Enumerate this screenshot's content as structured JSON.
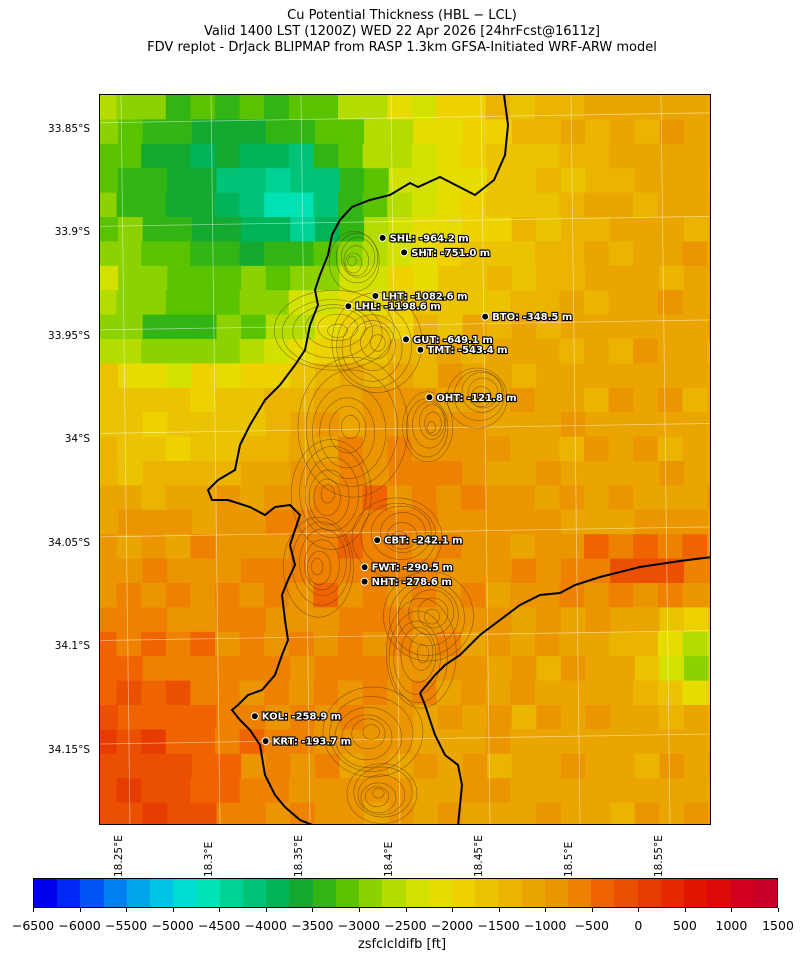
{
  "title_lines": [
    "Cu Potential Thickness (HBL − LCL)",
    "Valid 1400 LST (1200Z) WED 22 Apr 2026 [24hrFcst@1611z]",
    "FDV replot - DrJack BLIPMAP from RASP 1.3km GFSA-Initiated WRF-ARW model"
  ],
  "lat_ticks": [
    {
      "label": "33.85°S",
      "lat": -33.85
    },
    {
      "label": "33.9°S",
      "lat": -33.9
    },
    {
      "label": "33.95°S",
      "lat": -33.95
    },
    {
      "label": "34°S",
      "lat": -34.0
    },
    {
      "label": "34.05°S",
      "lat": -34.05
    },
    {
      "label": "34.1°S",
      "lat": -34.1
    },
    {
      "label": "34.15°S",
      "lat": -34.15
    }
  ],
  "lon_ticks": [
    {
      "label": "18.25°E",
      "lon": 18.25
    },
    {
      "label": "18.3°E",
      "lon": 18.3
    },
    {
      "label": "18.35°E",
      "lon": 18.35
    },
    {
      "label": "18.4°E",
      "lon": 18.4
    },
    {
      "label": "18.45°E",
      "lon": 18.45
    },
    {
      "label": "18.5°E",
      "lon": 18.5
    },
    {
      "label": "18.55°E",
      "lon": 18.55
    }
  ],
  "stations": [
    {
      "code": "SHL",
      "label": "SHL: -964.2 m",
      "lat": -33.908,
      "lon": 18.392
    },
    {
      "code": "SHT",
      "label": "SHT: -751.0 m",
      "lat": -33.915,
      "lon": 18.404
    },
    {
      "code": "LHT",
      "label": "LHT: -1082.6 m",
      "lat": -33.936,
      "lon": 18.388
    },
    {
      "code": "LHL",
      "label": "LHL: -1198.6 m",
      "lat": -33.941,
      "lon": 18.373
    },
    {
      "code": "BTO",
      "label": "BTO: -348.5 m",
      "lat": -33.946,
      "lon": 18.449
    },
    {
      "code": "GUT",
      "label": "GUT: -649.1 m",
      "lat": -33.957,
      "lon": 18.405
    },
    {
      "code": "TMT",
      "label": "TMT: -543.4 m",
      "lat": -33.962,
      "lon": 18.413
    },
    {
      "code": "OHT",
      "label": "OHT: -121.8 m",
      "lat": -33.985,
      "lon": 18.418
    },
    {
      "code": "CBT",
      "label": "CBT: -242.1 m",
      "lat": -34.054,
      "lon": 18.389
    },
    {
      "code": "FWT",
      "label": "FWT: -290.5 m",
      "lat": -34.067,
      "lon": 18.382
    },
    {
      "code": "NHT",
      "label": "NHT: -278.6 m",
      "lat": -34.074,
      "lon": 18.382
    },
    {
      "code": "KOL",
      "label": "KOL: -258.9 m",
      "lat": -34.139,
      "lon": 18.321
    },
    {
      "code": "KRT",
      "label": "KRT: -193.7 m",
      "lat": -34.151,
      "lon": 18.327
    }
  ],
  "colorbar": {
    "label": "zsfclcldifb [ft]",
    "min": -6500,
    "max": 1500,
    "step": 250,
    "tick_labels": [
      "−6500",
      "−6000",
      "−5500",
      "−5000",
      "−4500",
      "−4000",
      "−3500",
      "−3000",
      "−2500",
      "−2000",
      "−1500",
      "−1000",
      "−500",
      "0",
      "500",
      "1000",
      "1500"
    ],
    "tick_values": [
      -6500,
      -6000,
      -5500,
      -5000,
      -4500,
      -4000,
      -3500,
      -3000,
      -2500,
      -2000,
      -1500,
      -1000,
      -500,
      0,
      500,
      1000,
      1500
    ],
    "colors": [
      "#0000f0",
      "#0028f5",
      "#0055f5",
      "#0080f0",
      "#00a5ea",
      "#00c3e6",
      "#00dcd2",
      "#00e1b4",
      "#00d296",
      "#00c378",
      "#00b45a",
      "#14aa32",
      "#32b414",
      "#5ac300",
      "#8cd200",
      "#b4dc00",
      "#d2e100",
      "#e6dc00",
      "#eed200",
      "#ebc300",
      "#ebb400",
      "#eba500",
      "#eb9600",
      "#ee8200",
      "#f06400",
      "#ea5000",
      "#e63c00",
      "#e62800",
      "#e11400",
      "#dc0a0a",
      "#d2001e",
      "#c80028"
    ]
  }
}
